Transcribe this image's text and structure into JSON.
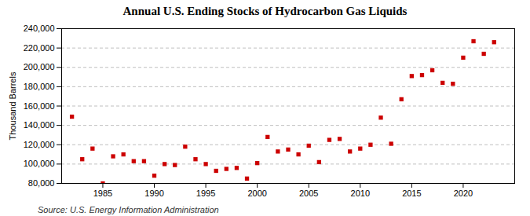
{
  "chart_data": {
    "type": "scatter",
    "title": "Annual U.S. Ending Stocks of Hydrocarbon Gas Liquids",
    "ylabel": "Thousand Barrels",
    "source": "Source: U.S. Energy Information Administration",
    "x": [
      1982,
      1983,
      1984,
      1985,
      1986,
      1987,
      1988,
      1989,
      1990,
      1991,
      1992,
      1993,
      1994,
      1995,
      1996,
      1997,
      1998,
      1999,
      2000,
      2001,
      2002,
      2003,
      2004,
      2005,
      2006,
      2007,
      2008,
      2009,
      2010,
      2011,
      2012,
      2013,
      2014,
      2015,
      2016,
      2017,
      2018,
      2019,
      2020,
      2021,
      2022,
      2023
    ],
    "values": [
      149000,
      105000,
      116000,
      80000,
      108000,
      110000,
      103000,
      103000,
      88000,
      100000,
      99000,
      118000,
      105000,
      100000,
      93000,
      95000,
      96000,
      85000,
      101000,
      128000,
      113000,
      115000,
      110000,
      119000,
      102000,
      125000,
      126000,
      113000,
      116000,
      120000,
      148000,
      121000,
      167000,
      191000,
      192000,
      197000,
      184000,
      183000,
      210000,
      227000,
      214000,
      226000
    ],
    "color": "#cc0000",
    "marker": "square",
    "xlim": [
      1981,
      2025
    ],
    "xticks": [
      1985,
      1990,
      1995,
      2000,
      2005,
      2010,
      2015,
      2020
    ],
    "ylim": [
      80000,
      240000
    ],
    "yticks": [
      {
        "value": 80000,
        "label": "80,000"
      },
      {
        "value": 100000,
        "label": "100,000"
      },
      {
        "value": 120000,
        "label": "120,000"
      },
      {
        "value": 140000,
        "label": "140,000"
      },
      {
        "value": 160000,
        "label": "160,000"
      },
      {
        "value": 180000,
        "label": "180,000"
      },
      {
        "value": 200000,
        "label": "200,000"
      },
      {
        "value": 220000,
        "label": "220,000"
      },
      {
        "value": 240000,
        "label": "240,000"
      }
    ],
    "grid": "y"
  }
}
